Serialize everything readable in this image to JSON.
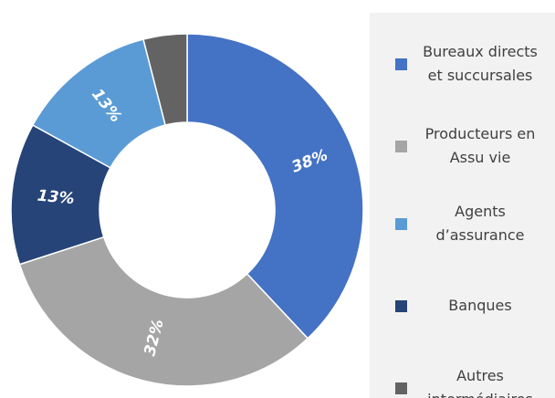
{
  "chart_data": {
    "type": "donut",
    "categories": [
      "Bureaux directs et succursales",
      "Producteurs en Assu vie",
      "Banques",
      "Agents d’assurance",
      "Autres intermédiaires"
    ],
    "values": [
      38,
      32,
      13,
      13,
      4
    ],
    "value_labels": [
      "38%",
      "32%",
      "13%",
      "13%",
      null
    ],
    "colors": [
      "#4472c4",
      "#a5a5a5",
      "#264478",
      "#5b9bd5",
      "#636363"
    ],
    "legend": "right"
  }
}
